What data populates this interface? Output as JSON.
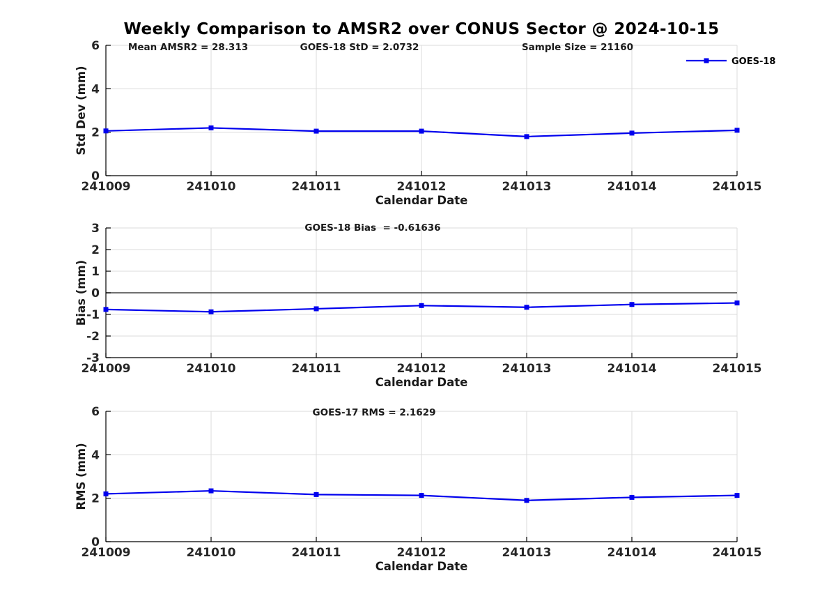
{
  "title": "Weekly Comparison to AMSR2 over CONUS Sector @ 2024-10-15",
  "colors": {
    "line": "#0000EE",
    "grid": "#DBDBDB",
    "axis": "#000000",
    "tick_text": "#262626",
    "label_text": "#1A1A1A",
    "zero_line": "#404040",
    "background": "#FFFFFF"
  },
  "legend": {
    "label": "GOES-18",
    "position": "top-right",
    "marker": "square",
    "line_color": "#0000EE"
  },
  "chart_data": [
    {
      "type": "line",
      "name": "std-dev-panel",
      "annotations": [
        "Mean AMSR2 = 28.313",
        "GOES-18 StD = 2.0732",
        "Sample Size = 21160"
      ],
      "categories": [
        "241009",
        "241010",
        "241011",
        "241012",
        "241013",
        "241014",
        "241015"
      ],
      "series": [
        {
          "name": "GOES-18",
          "values": [
            2.06,
            2.2,
            2.05,
            2.05,
            1.8,
            1.96,
            2.09
          ]
        }
      ],
      "xlabel": "Calendar Date",
      "ylabel": "Std Dev (mm)",
      "ylim": [
        0,
        6
      ],
      "y_ticks": [
        0,
        2,
        4,
        6
      ],
      "grid": true,
      "zero_line": false,
      "show_legend": true,
      "legend_position": "top-right"
    },
    {
      "type": "line",
      "name": "bias-panel",
      "annotations": [
        "GOES-18 Bias  = -0.61636"
      ],
      "categories": [
        "241009",
        "241010",
        "241011",
        "241012",
        "241013",
        "241014",
        "241015"
      ],
      "series": [
        {
          "name": "GOES-18",
          "values": [
            -0.77,
            -0.88,
            -0.74,
            -0.59,
            -0.67,
            -0.54,
            -0.47
          ]
        }
      ],
      "xlabel": "Calendar Date",
      "ylabel": "Bias (mm)",
      "ylim": [
        -3,
        3
      ],
      "y_ticks": [
        -3,
        -2,
        -1,
        0,
        1,
        2,
        3
      ],
      "grid": true,
      "zero_line": true,
      "show_legend": false
    },
    {
      "type": "line",
      "name": "rms-panel",
      "annotations": [
        "GOES-17 RMS = 2.1629"
      ],
      "categories": [
        "241009",
        "241010",
        "241011",
        "241012",
        "241013",
        "241014",
        "241015"
      ],
      "series": [
        {
          "name": "GOES-18",
          "values": [
            2.2,
            2.34,
            2.17,
            2.13,
            1.9,
            2.04,
            2.13
          ]
        }
      ],
      "xlabel": "Calendar Date",
      "ylabel": "RMS (mm)",
      "ylim": [
        0,
        6
      ],
      "y_ticks": [
        0,
        2,
        4,
        6
      ],
      "grid": true,
      "zero_line": false,
      "show_legend": false
    }
  ]
}
